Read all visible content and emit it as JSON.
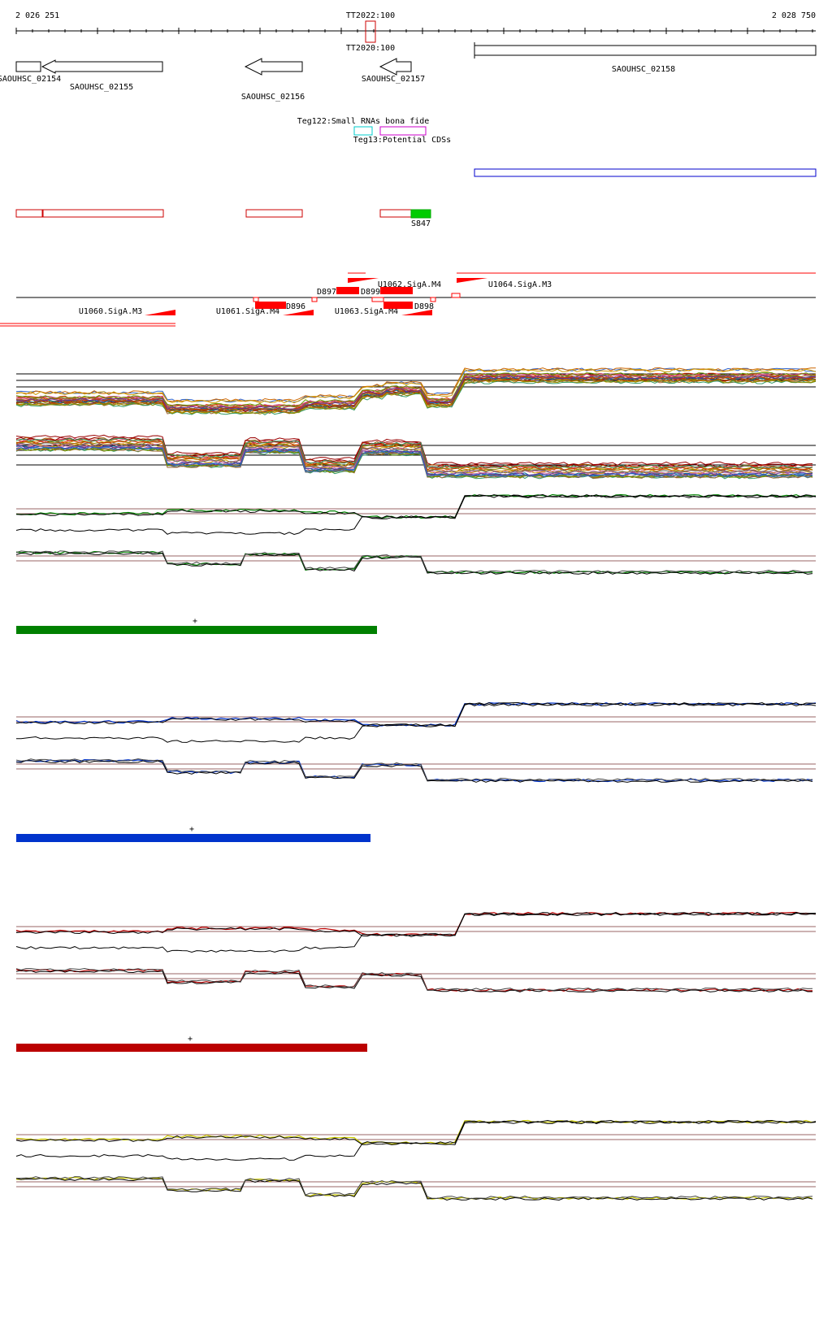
{
  "ruler": {
    "start_label": "2 026 251",
    "end_label": "2 028 750",
    "start_pos": 2026251,
    "end_pos": 2028750,
    "marker_top_label": "TT2022:100",
    "marker_bottom_label": "TT2020:100"
  },
  "genes": [
    {
      "label": "SAOUHSC_02154",
      "strand": "+"
    },
    {
      "label": "SAOUHSC_02155",
      "strand": "-"
    },
    {
      "label": "SAOUHSC_02156",
      "strand": "-"
    },
    {
      "label": "SAOUHSC_02157",
      "strand": "-"
    },
    {
      "label": "SAOUHSC_02158",
      "strand": "+"
    }
  ],
  "features": {
    "small_rna_label": "Teg122:Small RNAs bona fide",
    "potential_cds_label": "Teg13:Potential CDSs",
    "s_label": "S847"
  },
  "promoters": {
    "labels": [
      "U1060.SigA.M3",
      "U1061.SigA.M4",
      "U1062.SigA.M4",
      "U1063.SigA.M4",
      "U1064.SigA.M3"
    ],
    "d_labels": [
      "D896",
      "D897",
      "D899",
      "D898"
    ]
  },
  "condition_blocks": [
    {
      "color": "#008000",
      "bar_label": "+"
    },
    {
      "color": "#0033cc",
      "bar_label": "+"
    },
    {
      "color": "#bb0000",
      "bar_label": "+"
    },
    {
      "color": "#cccc00",
      "bar_label": ""
    }
  ],
  "colors": {
    "gene_outline": "#000000",
    "rna_outline": "#cc0000",
    "cds_outline": "#cc00cc",
    "small_rna_box": "#00cccc",
    "blue_region": "#0000cc",
    "s_feature_fill": "#00cc00",
    "promoter": "#ff0000"
  }
}
